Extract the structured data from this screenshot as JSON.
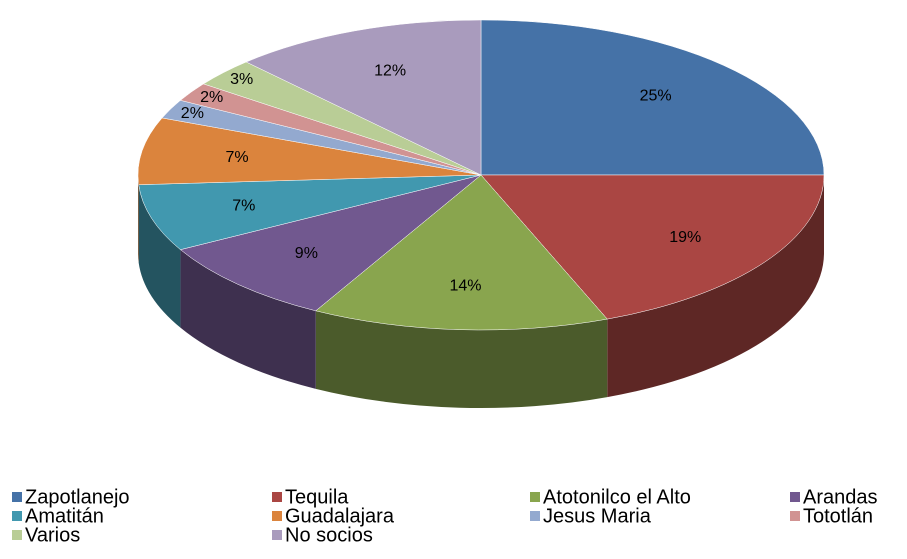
{
  "chart_data": {
    "type": "pie",
    "categories": [
      "Zapotlanejo",
      "Tequila",
      "Atotonilco el Alto",
      "Arandas",
      "Amatitán",
      "Guadalajara",
      "Jesus Maria",
      "Tototlán",
      "Varios",
      "No socios"
    ],
    "values": [
      25,
      19,
      14,
      9,
      7,
      7,
      2,
      2,
      3,
      12
    ],
    "value_labels": [
      "25%",
      "19%",
      "14%",
      "9%",
      "7%",
      "7%",
      "2%",
      "2%",
      "3%",
      "12%"
    ],
    "colors": [
      "#4572a7",
      "#aa4643",
      "#89a54e",
      "#71588f",
      "#4198af",
      "#db843d",
      "#93a9cf",
      "#d19392",
      "#b9cd96",
      "#a99bbd"
    ],
    "legend": "bottom"
  }
}
